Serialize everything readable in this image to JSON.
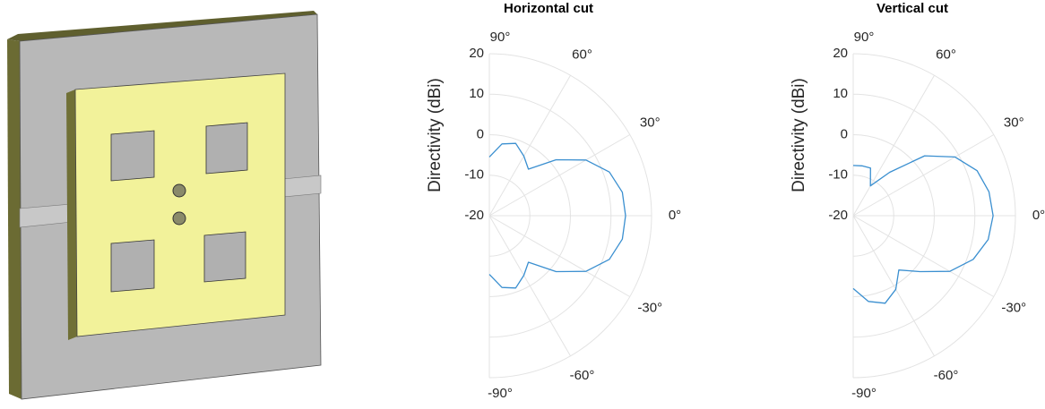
{
  "chart_data": [
    {
      "type": "polar",
      "title": "Horizontal cut",
      "r_label": "Directivity (dBi)",
      "x": [
        -90,
        -80,
        -70,
        -60,
        -50,
        -40,
        -30,
        -20,
        -10,
        0,
        10,
        20,
        30,
        40,
        50,
        60,
        70,
        80,
        90
      ],
      "values": [
        -5.5,
        -2,
        -1,
        -3,
        -5,
        1.5,
        7.5,
        11.5,
        13.3,
        13.6,
        13.3,
        11.5,
        7.5,
        1.5,
        -5,
        -3,
        -1,
        -2,
        -5.5
      ],
      "color": "#3a8fd0",
      "thetalim": [
        -90,
        90
      ],
      "thetaticks": [
        {
          "value": 90,
          "label": "90°"
        },
        {
          "value": 60,
          "label": "60°"
        },
        {
          "value": 30,
          "label": "30°"
        },
        {
          "value": 0,
          "label": "0°"
        },
        {
          "value": -30,
          "label": "-30°"
        },
        {
          "value": -60,
          "label": "-60°"
        },
        {
          "value": -90,
          "label": "-90°"
        }
      ],
      "rlim": [
        -20,
        20
      ],
      "rticks": [
        20,
        10,
        0,
        -10,
        -20
      ],
      "grid": true
    },
    {
      "type": "polar",
      "title": "Vertical cut",
      "r_label": "Directivity (dBi)",
      "x": [
        -90,
        -80,
        -70,
        -60,
        -50,
        -40,
        -30,
        -20,
        -10,
        0,
        10,
        20,
        30,
        40,
        50,
        60,
        70,
        80,
        90
      ],
      "values": [
        -2,
        1.5,
        3,
        1,
        -2.5,
        1.5,
        7.5,
        11.5,
        13.8,
        14.5,
        14,
        12.5,
        9,
        3,
        -6,
        -11.5,
        -7.5,
        -7.5,
        -7.6
      ],
      "color": "#3a8fd0",
      "thetalim": [
        -90,
        90
      ],
      "thetaticks": [
        {
          "value": 90,
          "label": "90°"
        },
        {
          "value": 60,
          "label": "60°"
        },
        {
          "value": 30,
          "label": "30°"
        },
        {
          "value": 0,
          "label": "0°"
        },
        {
          "value": -30,
          "label": "-30°"
        },
        {
          "value": -60,
          "label": "-60°"
        },
        {
          "value": -90,
          "label": "-90°"
        }
      ],
      "rlim": [
        -20,
        20
      ],
      "rticks": [
        20,
        10,
        0,
        -10,
        -20
      ],
      "grid": true
    }
  ]
}
